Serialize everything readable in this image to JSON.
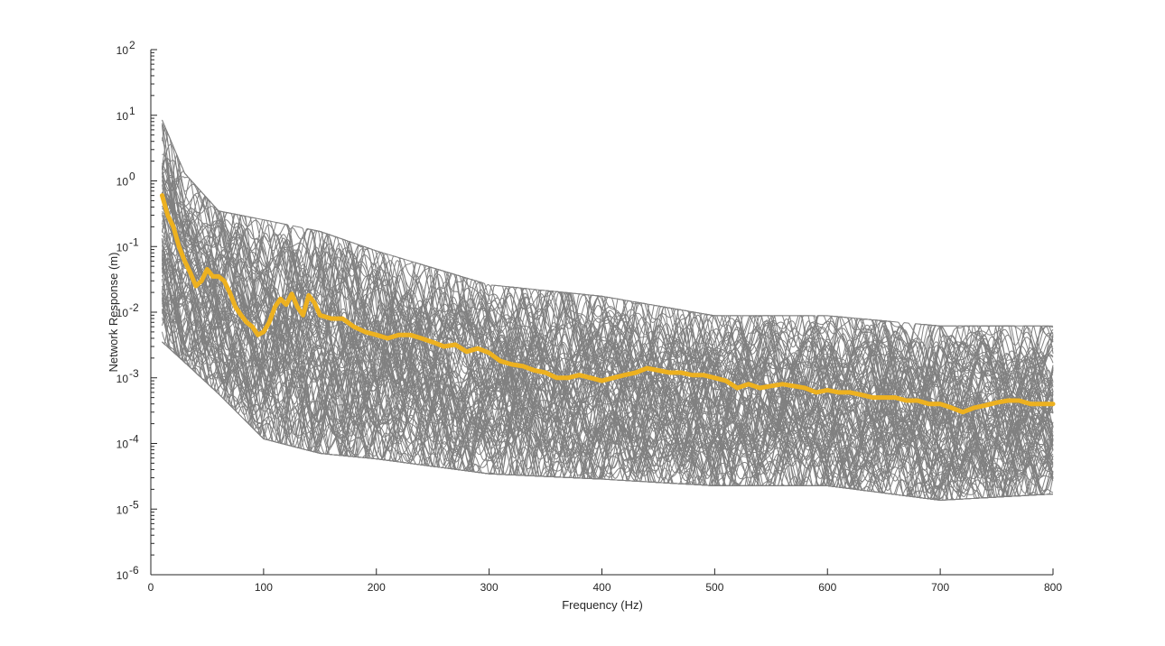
{
  "chart_data": {
    "type": "line",
    "title": "",
    "xlabel": "Frequency (Hz)",
    "ylabel": "Network Response (m)",
    "xlim": [
      0,
      800
    ],
    "ylim": [
      1e-06,
      100
    ],
    "yscale": "log",
    "grid": false,
    "legend": "none",
    "x_ticks": [
      {
        "value": 0,
        "label": "0"
      },
      {
        "value": 100,
        "label": "100"
      },
      {
        "value": 200,
        "label": "200"
      },
      {
        "value": 300,
        "label": "300"
      },
      {
        "value": 400,
        "label": "400"
      },
      {
        "value": 500,
        "label": "500"
      },
      {
        "value": 600,
        "label": "600"
      },
      {
        "value": 700,
        "label": "700"
      },
      {
        "value": 800,
        "label": "800"
      }
    ],
    "y_ticks": [
      {
        "value": 1e-06,
        "base": "10",
        "exp": "-6"
      },
      {
        "value": 1e-05,
        "base": "10",
        "exp": "-5"
      },
      {
        "value": 0.0001,
        "base": "10",
        "exp": "-4"
      },
      {
        "value": 0.001,
        "base": "10",
        "exp": "-3"
      },
      {
        "value": 0.01,
        "base": "10",
        "exp": "-2"
      },
      {
        "value": 0.1,
        "base": "10",
        "exp": "-1"
      },
      {
        "value": 1,
        "base": "10",
        "exp": "0"
      },
      {
        "value": 10,
        "base": "10",
        "exp": "1"
      },
      {
        "value": 100,
        "base": "10",
        "exp": "2"
      }
    ],
    "colors": {
      "individual": "#808080",
      "mean": "#EDB120",
      "axis": "#262626"
    },
    "individual_responses": {
      "count": 100,
      "x_range": [
        10,
        800
      ],
      "envelope_upper": [
        [
          10,
          10
        ],
        [
          30,
          1.5
        ],
        [
          60,
          0.4
        ],
        [
          100,
          0.3
        ],
        [
          150,
          0.2
        ],
        [
          200,
          0.1
        ],
        [
          300,
          0.03
        ],
        [
          400,
          0.02
        ],
        [
          500,
          0.01
        ],
        [
          600,
          0.01
        ],
        [
          700,
          0.007
        ],
        [
          800,
          0.007
        ]
      ],
      "envelope_lower": [
        [
          10,
          0.003
        ],
        [
          30,
          0.0015
        ],
        [
          60,
          0.0005
        ],
        [
          100,
          0.0001
        ],
        [
          150,
          6e-05
        ],
        [
          200,
          5e-05
        ],
        [
          300,
          3e-05
        ],
        [
          400,
          2.5e-05
        ],
        [
          500,
          2e-05
        ],
        [
          600,
          2e-05
        ],
        [
          700,
          1.2e-05
        ],
        [
          800,
          1.5e-05
        ]
      ]
    },
    "series": [
      {
        "values": [
          [
            10,
            0.6
          ],
          [
            15,
            0.3
          ],
          [
            20,
            0.2
          ],
          [
            25,
            0.1
          ],
          [
            30,
            0.06
          ],
          [
            35,
            0.04
          ],
          [
            40,
            0.025
          ],
          [
            45,
            0.03
          ],
          [
            50,
            0.045
          ],
          [
            55,
            0.035
          ],
          [
            60,
            0.035
          ],
          [
            65,
            0.03
          ],
          [
            70,
            0.02
          ],
          [
            75,
            0.012
          ],
          [
            80,
            0.009
          ],
          [
            85,
            0.007
          ],
          [
            90,
            0.006
          ],
          [
            95,
            0.0045
          ],
          [
            100,
            0.005
          ],
          [
            105,
            0.007
          ],
          [
            110,
            0.012
          ],
          [
            115,
            0.016
          ],
          [
            120,
            0.013
          ],
          [
            125,
            0.019
          ],
          [
            130,
            0.012
          ],
          [
            135,
            0.009
          ],
          [
            140,
            0.018
          ],
          [
            145,
            0.014
          ],
          [
            150,
            0.009
          ],
          [
            160,
            0.008
          ],
          [
            170,
            0.008
          ],
          [
            180,
            0.006
          ],
          [
            190,
            0.005
          ],
          [
            200,
            0.0045
          ],
          [
            210,
            0.004
          ],
          [
            220,
            0.0045
          ],
          [
            230,
            0.0045
          ],
          [
            240,
            0.004
          ],
          [
            250,
            0.0035
          ],
          [
            260,
            0.003
          ],
          [
            270,
            0.0032
          ],
          [
            280,
            0.0025
          ],
          [
            290,
            0.0028
          ],
          [
            300,
            0.0024
          ],
          [
            310,
            0.0018
          ],
          [
            320,
            0.0016
          ],
          [
            330,
            0.0015
          ],
          [
            340,
            0.0013
          ],
          [
            350,
            0.0012
          ],
          [
            360,
            0.001
          ],
          [
            370,
            0.001
          ],
          [
            380,
            0.0011
          ],
          [
            390,
            0.001
          ],
          [
            400,
            0.0009
          ],
          [
            410,
            0.001
          ],
          [
            420,
            0.0011
          ],
          [
            430,
            0.0012
          ],
          [
            440,
            0.0014
          ],
          [
            450,
            0.0013
          ],
          [
            460,
            0.0012
          ],
          [
            470,
            0.0012
          ],
          [
            480,
            0.0011
          ],
          [
            490,
            0.0011
          ],
          [
            500,
            0.001
          ],
          [
            510,
            0.0009
          ],
          [
            520,
            0.0007
          ],
          [
            530,
            0.0008
          ],
          [
            540,
            0.0007
          ],
          [
            550,
            0.00075
          ],
          [
            560,
            0.0008
          ],
          [
            570,
            0.00075
          ],
          [
            580,
            0.0007
          ],
          [
            590,
            0.0006
          ],
          [
            600,
            0.00065
          ],
          [
            610,
            0.0006
          ],
          [
            620,
            0.0006
          ],
          [
            630,
            0.00055
          ],
          [
            640,
            0.0005
          ],
          [
            650,
            0.0005
          ],
          [
            660,
            0.0005
          ],
          [
            670,
            0.00045
          ],
          [
            680,
            0.00045
          ],
          [
            690,
            0.0004
          ],
          [
            700,
            0.0004
          ],
          [
            710,
            0.00035
          ],
          [
            720,
            0.0003
          ],
          [
            730,
            0.00035
          ],
          [
            740,
            0.00038
          ],
          [
            750,
            0.00042
          ],
          [
            760,
            0.00045
          ],
          [
            770,
            0.00045
          ],
          [
            780,
            0.0004
          ],
          [
            790,
            0.0004
          ],
          [
            800,
            0.0004
          ]
        ]
      }
    ]
  }
}
